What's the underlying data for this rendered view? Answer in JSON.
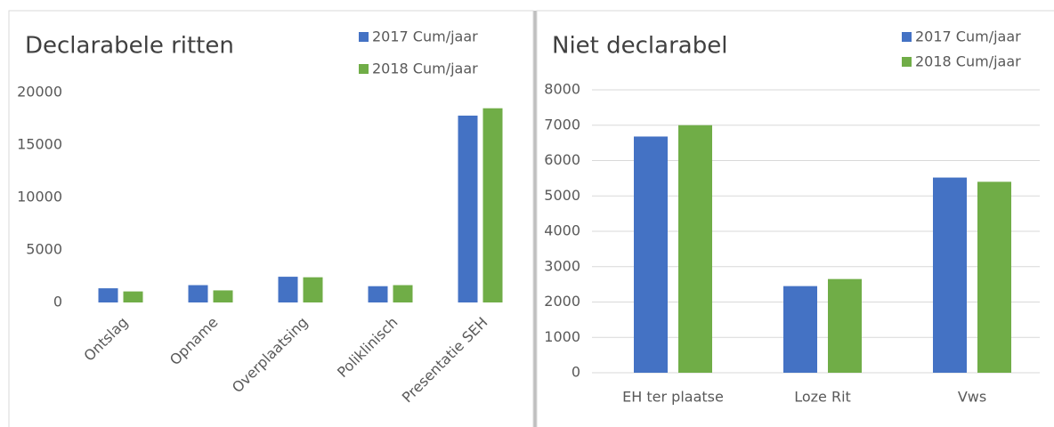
{
  "chart_data": [
    {
      "type": "bar",
      "title": "Declarabele ritten",
      "categories": [
        "Ontslag",
        "Opname",
        "Overplaatsing",
        "Poliklinisch",
        "Presentatie SEH"
      ],
      "series": [
        {
          "name": "2017 Cum/jaar",
          "color": "#4472c4",
          "values": [
            1350,
            1650,
            2450,
            1550,
            17800
          ]
        },
        {
          "name": "2018 Cum/jaar",
          "color": "#70ad47",
          "values": [
            1050,
            1150,
            2400,
            1650,
            18500
          ]
        }
      ],
      "ylim": [
        0,
        20000
      ],
      "yticks": [
        0,
        5000,
        10000,
        15000,
        20000
      ],
      "grid": false,
      "x_label_rotation": -45
    },
    {
      "type": "bar",
      "title": "Niet declarabel",
      "categories": [
        "EH ter plaatse",
        "Loze Rit",
        "Vws"
      ],
      "series": [
        {
          "name": "2017 Cum/jaar",
          "color": "#4472c4",
          "values": [
            6680,
            2450,
            5520
          ]
        },
        {
          "name": "2018 Cum/jaar",
          "color": "#70ad47",
          "values": [
            7000,
            2650,
            5400
          ]
        }
      ],
      "ylim": [
        0,
        8000
      ],
      "yticks": [
        0,
        1000,
        2000,
        3000,
        4000,
        5000,
        6000,
        7000,
        8000
      ],
      "grid": true,
      "x_label_rotation": 0
    }
  ]
}
